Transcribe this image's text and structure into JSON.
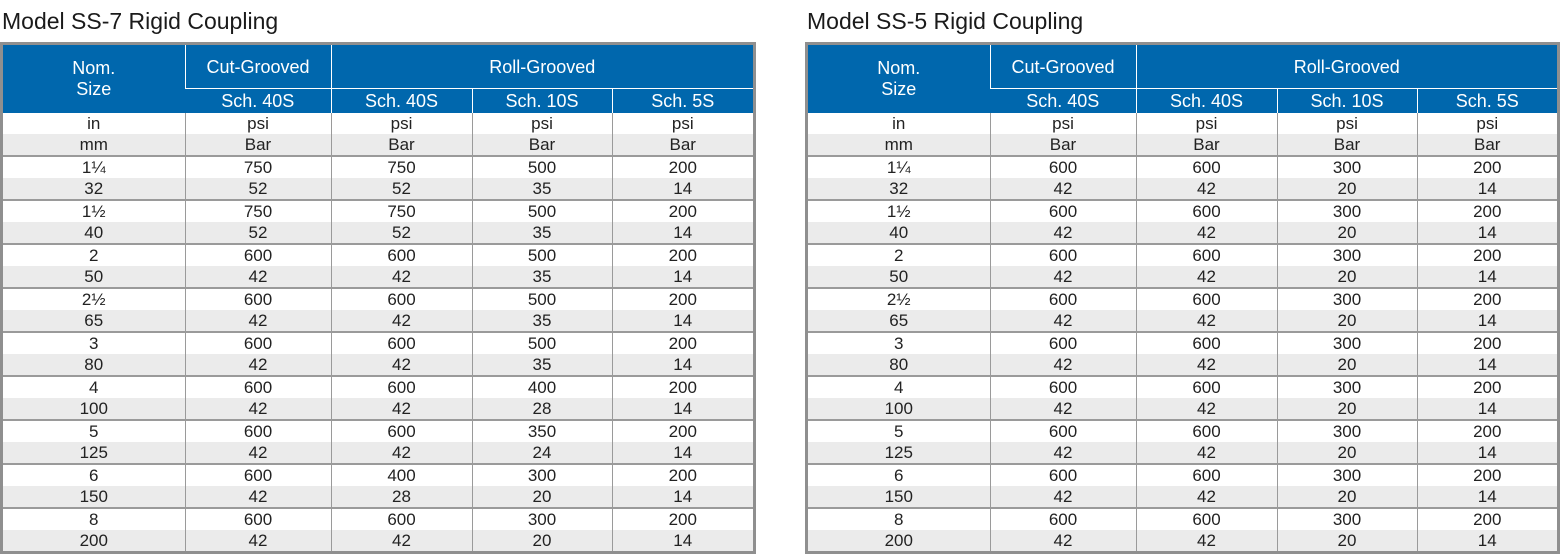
{
  "tables": [
    {
      "title": "Model SS-7 Rigid Coupling",
      "headers": {
        "nom_size": "Nom. Size",
        "cut_grooved": "Cut-Grooved",
        "roll_grooved": "Roll-Grooved",
        "sch": [
          "Sch. 40S",
          "Sch. 40S",
          "Sch. 10S",
          "Sch. 5S"
        ]
      },
      "units_imperial": [
        "in",
        "psi",
        "psi",
        "psi",
        "psi"
      ],
      "units_metric": [
        "mm",
        "Bar",
        "Bar",
        "Bar",
        "Bar"
      ],
      "rows": [
        {
          "in": "1¼",
          "mm": "32",
          "psi": [
            "750",
            "750",
            "500",
            "200"
          ],
          "bar": [
            "52",
            "52",
            "35",
            "14"
          ]
        },
        {
          "in": "1½",
          "mm": "40",
          "psi": [
            "750",
            "750",
            "500",
            "200"
          ],
          "bar": [
            "52",
            "52",
            "35",
            "14"
          ]
        },
        {
          "in": "2",
          "mm": "50",
          "psi": [
            "600",
            "600",
            "500",
            "200"
          ],
          "bar": [
            "42",
            "42",
            "35",
            "14"
          ]
        },
        {
          "in": "2½",
          "mm": "65",
          "psi": [
            "600",
            "600",
            "500",
            "200"
          ],
          "bar": [
            "42",
            "42",
            "35",
            "14"
          ]
        },
        {
          "in": "3",
          "mm": "80",
          "psi": [
            "600",
            "600",
            "500",
            "200"
          ],
          "bar": [
            "42",
            "42",
            "35",
            "14"
          ]
        },
        {
          "in": "4",
          "mm": "100",
          "psi": [
            "600",
            "600",
            "400",
            "200"
          ],
          "bar": [
            "42",
            "42",
            "28",
            "14"
          ]
        },
        {
          "in": "5",
          "mm": "125",
          "psi": [
            "600",
            "600",
            "350",
            "200"
          ],
          "bar": [
            "42",
            "42",
            "24",
            "14"
          ]
        },
        {
          "in": "6",
          "mm": "150",
          "psi": [
            "600",
            "400",
            "300",
            "200"
          ],
          "bar": [
            "42",
            "28",
            "20",
            "14"
          ]
        },
        {
          "in": "8",
          "mm": "200",
          "psi": [
            "600",
            "600",
            "300",
            "200"
          ],
          "bar": [
            "42",
            "42",
            "20",
            "14"
          ]
        }
      ]
    },
    {
      "title": "Model SS-5 Rigid Coupling",
      "headers": {
        "nom_size": "Nom. Size",
        "cut_grooved": "Cut-Grooved",
        "roll_grooved": "Roll-Grooved",
        "sch": [
          "Sch. 40S",
          "Sch. 40S",
          "Sch. 10S",
          "Sch. 5S"
        ]
      },
      "units_imperial": [
        "in",
        "psi",
        "psi",
        "psi",
        "psi"
      ],
      "units_metric": [
        "mm",
        "Bar",
        "Bar",
        "Bar",
        "Bar"
      ],
      "rows": [
        {
          "in": "1¼",
          "mm": "32",
          "psi": [
            "600",
            "600",
            "300",
            "200"
          ],
          "bar": [
            "42",
            "42",
            "20",
            "14"
          ]
        },
        {
          "in": "1½",
          "mm": "40",
          "psi": [
            "600",
            "600",
            "300",
            "200"
          ],
          "bar": [
            "42",
            "42",
            "20",
            "14"
          ]
        },
        {
          "in": "2",
          "mm": "50",
          "psi": [
            "600",
            "600",
            "300",
            "200"
          ],
          "bar": [
            "42",
            "42",
            "20",
            "14"
          ]
        },
        {
          "in": "2½",
          "mm": "65",
          "psi": [
            "600",
            "600",
            "300",
            "200"
          ],
          "bar": [
            "42",
            "42",
            "20",
            "14"
          ]
        },
        {
          "in": "3",
          "mm": "80",
          "psi": [
            "600",
            "600",
            "300",
            "200"
          ],
          "bar": [
            "42",
            "42",
            "20",
            "14"
          ]
        },
        {
          "in": "4",
          "mm": "100",
          "psi": [
            "600",
            "600",
            "300",
            "200"
          ],
          "bar": [
            "42",
            "42",
            "20",
            "14"
          ]
        },
        {
          "in": "5",
          "mm": "125",
          "psi": [
            "600",
            "600",
            "300",
            "200"
          ],
          "bar": [
            "42",
            "42",
            "20",
            "14"
          ]
        },
        {
          "in": "6",
          "mm": "150",
          "psi": [
            "600",
            "600",
            "300",
            "200"
          ],
          "bar": [
            "42",
            "42",
            "20",
            "14"
          ]
        },
        {
          "in": "8",
          "mm": "200",
          "psi": [
            "600",
            "600",
            "300",
            "200"
          ],
          "bar": [
            "42",
            "42",
            "20",
            "14"
          ]
        }
      ]
    }
  ],
  "colors": {
    "header_blue": "#0067ad",
    "row_shade": "#ebebeb",
    "border_gray": "#8f8f8f"
  }
}
